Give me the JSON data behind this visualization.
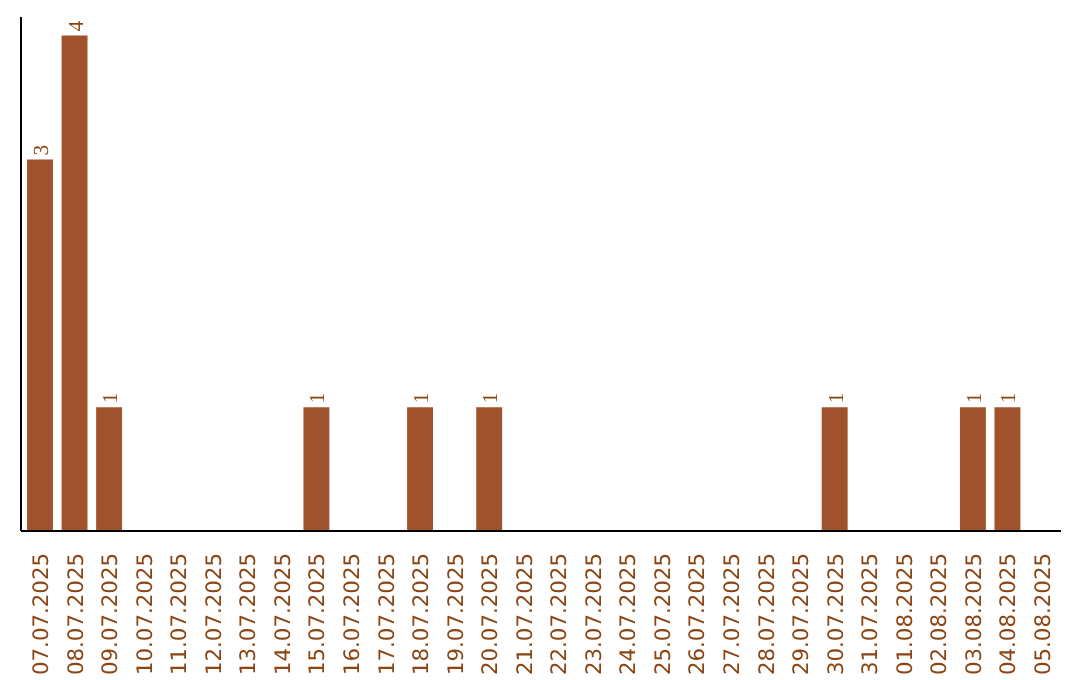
{
  "chart_data": {
    "type": "bar",
    "categories": [
      "07.07.2025",
      "08.07.2025",
      "09.07.2025",
      "10.07.2025",
      "11.07.2025",
      "12.07.2025",
      "13.07.2025",
      "14.07.2025",
      "15.07.2025",
      "16.07.2025",
      "17.07.2025",
      "18.07.2025",
      "19.07.2025",
      "20.07.2025",
      "21.07.2025",
      "22.07.2025",
      "23.07.2025",
      "24.07.2025",
      "25.07.2025",
      "26.07.2025",
      "27.07.2025",
      "28.07.2025",
      "29.07.2025",
      "30.07.2025",
      "31.07.2025",
      "01.08.2025",
      "02.08.2025",
      "03.08.2025",
      "04.08.2025",
      "05.08.2025"
    ],
    "values": [
      3,
      4,
      1,
      0,
      0,
      0,
      0,
      0,
      1,
      0,
      0,
      1,
      0,
      1,
      0,
      0,
      0,
      0,
      0,
      0,
      0,
      0,
      0,
      1,
      0,
      0,
      0,
      1,
      1,
      0
    ],
    "value_labels": [
      "3",
      "4",
      "1",
      null,
      null,
      null,
      null,
      null,
      "1",
      null,
      null,
      "1",
      null,
      "1",
      null,
      null,
      null,
      null,
      null,
      null,
      null,
      null,
      null,
      "1",
      null,
      null,
      null,
      "1",
      "1",
      null
    ],
    "color": "#a0522d",
    "ylim": [
      0,
      4.15
    ]
  }
}
